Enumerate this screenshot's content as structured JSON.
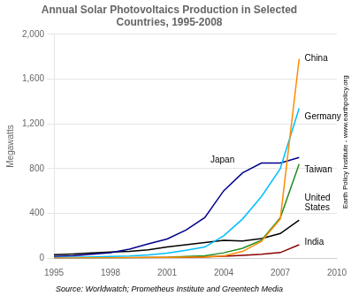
{
  "chart_data": {
    "type": "line",
    "title": "Annual Solar Photovoltaics Production in Selected\nCountries, 1995-2008",
    "y_label": "Megawatts",
    "source": "Source: Worldwatch; Prometheus Institute and Greentech Media",
    "credit": "Earth Policy Institute - www.earthpolicy.org",
    "x": [
      1995,
      1996,
      1997,
      1998,
      1999,
      2000,
      2001,
      2002,
      2003,
      2004,
      2005,
      2006,
      2007,
      2008
    ],
    "series": [
      {
        "name": "China",
        "color": "#FF8C00",
        "values": [
          1,
          2,
          3,
          4,
          5,
          6,
          7,
          10,
          12,
          20,
          60,
          150,
          350,
          1780
        ]
      },
      {
        "name": "Germany",
        "color": "#00BFFF",
        "values": [
          5,
          8,
          11,
          15,
          20,
          30,
          45,
          70,
          100,
          200,
          350,
          550,
          800,
          1340
        ]
      },
      {
        "name": "Japan",
        "color": "#00008B",
        "values": [
          16,
          21,
          35,
          49,
          80,
          128,
          171,
          251,
          363,
          602,
          762,
          850,
          850,
          900
        ]
      },
      {
        "name": "Taiwan",
        "color": "#228B22",
        "values": [
          1,
          1,
          2,
          2,
          3,
          5,
          8,
          15,
          22,
          48,
          88,
          160,
          360,
          840
        ]
      },
      {
        "name": "United States",
        "color": "#000000",
        "values": [
          31,
          38,
          46,
          55,
          60,
          74,
          100,
          120,
          140,
          160,
          154,
          175,
          220,
          340
        ]
      },
      {
        "name": "India",
        "color": "#8B0000",
        "values": [
          0,
          1,
          2,
          3,
          4,
          5,
          6,
          8,
          12,
          18,
          25,
          35,
          50,
          120
        ]
      }
    ],
    "annotations": [
      {
        "text": "China",
        "x": 2008.2,
        "y": 1780
      },
      {
        "text": "Germany",
        "x": 2008.2,
        "y": 1260
      },
      {
        "text": "Japan",
        "x": 2003.2,
        "y": 875
      },
      {
        "text": "Taiwan",
        "x": 2008.2,
        "y": 790
      },
      {
        "text": "United\nStates",
        "x": 2008.2,
        "y": 490
      },
      {
        "text": "India",
        "x": 2008.2,
        "y": 145
      }
    ],
    "xlim": [
      1995,
      2010
    ],
    "xticks": [
      1995,
      1998,
      2001,
      2004,
      2007,
      2010
    ],
    "ylim": [
      0,
      2000
    ],
    "yticks": [
      0,
      400,
      800,
      {
        "value": 1200,
        "label": "1,200"
      },
      {
        "value": 1600,
        "label": "1,600"
      },
      {
        "value": 2000,
        "label": "2,000"
      }
    ],
    "grid": "y",
    "legend": false
  }
}
